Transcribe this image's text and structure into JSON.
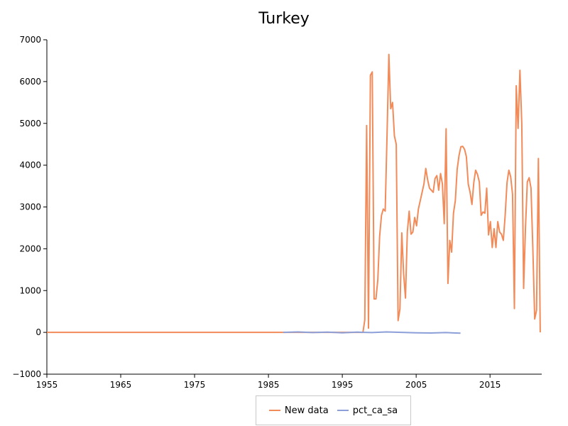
{
  "chart_data": {
    "type": "line",
    "title": "Turkey",
    "xlabel": "",
    "ylabel": "",
    "xlim": [
      1955,
      2022
    ],
    "ylim": [
      -1000,
      7000
    ],
    "x_ticks": [
      "1955",
      "1965",
      "1975",
      "1985",
      "1995",
      "2005",
      "2015"
    ],
    "y_ticks": [
      "7000",
      "6000",
      "5000",
      "4000",
      "3000",
      "2000",
      "1000",
      "0",
      "−1000"
    ],
    "legend_position": "bottom-center",
    "grid": false,
    "series": [
      {
        "name": "New data",
        "color": "#f28b5a",
        "x": [
          1955,
          1997.8,
          1998.05,
          1998.3,
          1998.55,
          1998.8,
          1999.05,
          1999.3,
          1999.55,
          1999.8,
          2000.05,
          2000.3,
          2000.55,
          2000.8,
          2001.05,
          2001.3,
          2001.55,
          2001.8,
          2002.05,
          2002.3,
          2002.55,
          2002.8,
          2003.05,
          2003.3,
          2003.55,
          2003.8,
          2004.05,
          2004.3,
          2004.55,
          2004.8,
          2005.05,
          2005.3,
          2005.55,
          2005.8,
          2006.05,
          2006.3,
          2006.55,
          2006.8,
          2007.05,
          2007.3,
          2007.55,
          2007.8,
          2008.05,
          2008.3,
          2008.55,
          2008.8,
          2009.05,
          2009.3,
          2009.55,
          2009.8,
          2010.05,
          2010.3,
          2010.55,
          2010.8,
          2011.05,
          2011.3,
          2011.55,
          2011.8,
          2012.05,
          2012.3,
          2012.55,
          2012.8,
          2013.05,
          2013.3,
          2013.55,
          2013.8,
          2014.05,
          2014.3,
          2014.55,
          2014.8,
          2015.05,
          2015.3,
          2015.55,
          2015.8,
          2016.05,
          2016.3,
          2016.55,
          2016.8,
          2017.05,
          2017.3,
          2017.55,
          2017.8,
          2018.05,
          2018.3,
          2018.55,
          2018.8,
          2019.05,
          2019.3,
          2019.55,
          2019.8,
          2020.05,
          2020.3,
          2020.55,
          2020.8,
          2021.05,
          2021.3,
          2021.55,
          2021.8
        ],
        "y": [
          0,
          0,
          300,
          4950,
          100,
          6150,
          6230,
          800,
          800,
          1250,
          2300,
          2800,
          2950,
          2900,
          4700,
          6650,
          5350,
          5500,
          4700,
          4500,
          280,
          560,
          2380,
          1400,
          820,
          2400,
          2900,
          2350,
          2400,
          2750,
          2550,
          2950,
          3150,
          3350,
          3550,
          3920,
          3650,
          3450,
          3400,
          3350,
          3680,
          3750,
          3400,
          3800,
          3550,
          2600,
          4870,
          1170,
          2200,
          1920,
          2850,
          3150,
          3900,
          4230,
          4440,
          4450,
          4380,
          4200,
          3550,
          3350,
          3060,
          3580,
          3880,
          3780,
          3600,
          2800,
          2880,
          2850,
          3450,
          2330,
          2650,
          2030,
          2480,
          2030,
          2650,
          2400,
          2350,
          2200,
          2800,
          3580,
          3880,
          3720,
          3300,
          570,
          5900,
          4880,
          6270,
          5000,
          1050,
          2500,
          3600,
          3700,
          3450,
          2000,
          320,
          530,
          4160,
          0
        ]
      },
      {
        "name": "pct_ca_sa",
        "color": "#8c9fd8",
        "x": [
          1987,
          1989,
          1991,
          1993,
          1995,
          1997,
          1999,
          2001,
          2003,
          2005,
          2007,
          2009,
          2011
        ],
        "y": [
          0,
          10,
          -5,
          8,
          -10,
          5,
          -5,
          10,
          0,
          -10,
          -15,
          -5,
          -20
        ]
      }
    ]
  }
}
